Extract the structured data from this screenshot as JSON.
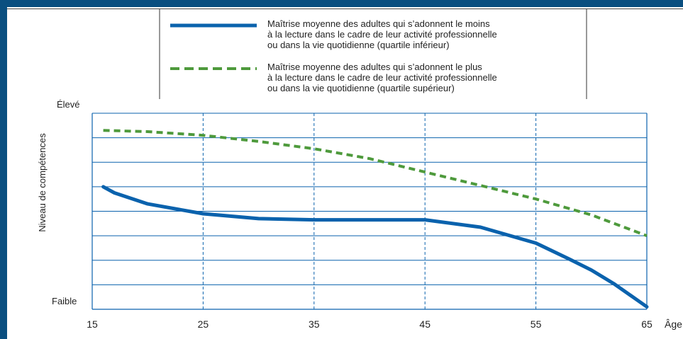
{
  "chart_data": {
    "type": "line",
    "xlabel": "Âge",
    "ylabel": "Niveau de compétences",
    "y_high_label": "Élevé",
    "y_low_label": "Faible",
    "xlim": [
      15,
      65
    ],
    "ylim": [
      0,
      8
    ],
    "grid": true,
    "x_ticks": [
      15,
      25,
      35,
      45,
      55,
      65
    ],
    "legend_position": "top",
    "series": [
      {
        "name": "Maîtrise moyenne des adultes qui s’adonnent le moins à la lecture dans le cadre de leur activité professionnelle ou dans la vie quotidienne (quartile inférieur)",
        "legend_lines": [
          "Maîtrise moyenne des adultes qui s’adonnent le moins",
          "à la lecture dans le cadre de leur activité professionnelle",
          "ou dans la vie quotidienne (quartile inférieur)"
        ],
        "style": "solid",
        "color": "#0a62ad",
        "x": [
          16,
          17,
          20,
          25,
          30,
          35,
          40,
          45,
          50,
          55,
          58,
          60,
          62,
          65
        ],
        "y": [
          5.0,
          4.75,
          4.3,
          3.9,
          3.7,
          3.65,
          3.65,
          3.65,
          3.35,
          2.7,
          2.05,
          1.6,
          1.05,
          0.1
        ]
      },
      {
        "name": "Maîtrise moyenne des adultes qui s’adonnent le plus à la lecture dans le cadre de leur activité professionnelle ou dans la vie quotidienne (quartile supérieur)",
        "legend_lines": [
          "Maîtrise moyenne des adultes qui s’adonnent le plus",
          "à la lecture dans le cadre de leur activité professionnelle",
          "ou dans la vie quotidienne (quartile supérieur)"
        ],
        "style": "dashed",
        "color": "#4e9a3c",
        "x": [
          16,
          20,
          25,
          30,
          35,
          40,
          45,
          50,
          55,
          60,
          65
        ],
        "y": [
          7.3,
          7.25,
          7.1,
          6.85,
          6.55,
          6.15,
          5.6,
          5.05,
          4.5,
          3.85,
          3.0
        ]
      }
    ]
  }
}
